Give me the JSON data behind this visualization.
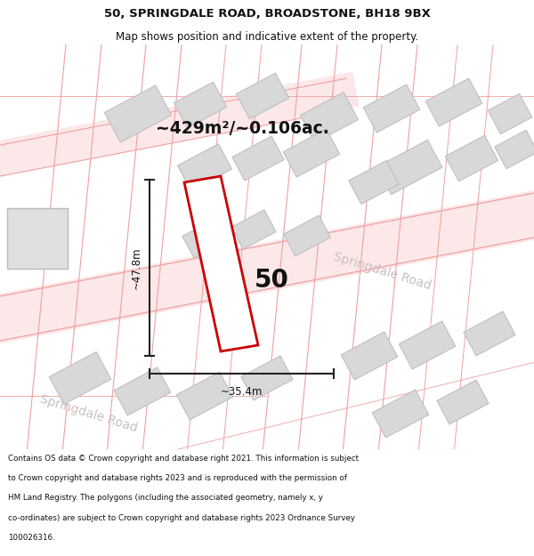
{
  "title_line1": "50, SPRINGDALE ROAD, BROADSTONE, BH18 9BX",
  "title_line2": "Map shows position and indicative extent of the property.",
  "footer_text": "Contains OS data © Crown copyright and database right 2021. This information is subject to Crown copyright and database rights 2023 and is reproduced with the permission of HM Land Registry. The polygons (including the associated geometry, namely x, y co-ordinates) are subject to Crown copyright and database rights 2023 Ordnance Survey 100026316.",
  "area_label": "~429m²/~0.106ac.",
  "dim_width": "~35.4m",
  "dim_height": "~47.8m",
  "number_label": "50",
  "map_bg": "#f9f9f9",
  "road_line_color": "#f0a0a0",
  "road_fill_color": "#fce8e8",
  "building_color": "#d8d8d8",
  "building_edge": "#bbbbbb",
  "highlight_color": "#cc0000",
  "dim_line_color": "#222222",
  "road_label_color": "#c8c0c0",
  "title_color": "#111111",
  "footer_color": "#111111"
}
